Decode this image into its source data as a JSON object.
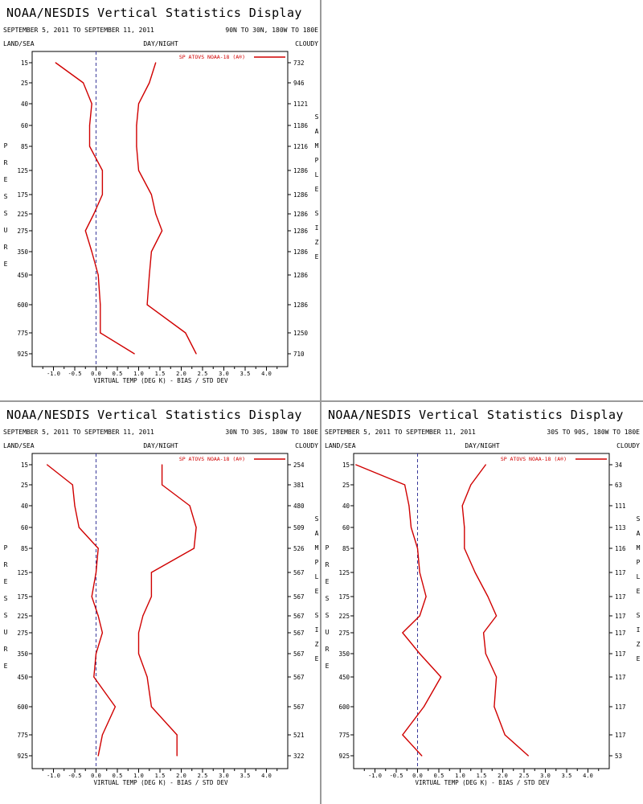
{
  "display_title": "NOAA/NESDIS Vertical Statistics Display",
  "x_axis_label": "VIRTUAL TEMP (DEG K) - BIAS / STD DEV",
  "header_labels": {
    "left": "LAND/SEA",
    "center": "DAY/NIGHT",
    "right": "CLOUDY"
  },
  "pressure_label": "PRESSURE",
  "sample_size_label": "SAMPLE SIZE",
  "legend_label": "SP ATOVS NOAA-18 (A®)",
  "colors": {
    "series": "#d00000",
    "zero_line": "#3a3a9a",
    "axis": "#000000",
    "divider": "#9a9a9a"
  },
  "chart_data": [
    {
      "type": "line",
      "date_range": "SEPTEMBER 5, 2011 TO SEPTEMBER 11, 2011",
      "region": "90N TO 30N, 180W TO 180E",
      "xlim": [
        -1.5,
        4.5
      ],
      "x_ticks": [
        "-1.0",
        "-0.5",
        "0.0",
        "0.5",
        "1.0",
        "1.5",
        "2.0",
        "2.5",
        "3.0",
        "3.5",
        "4.0"
      ],
      "pressure_levels": [
        "15",
        "25",
        "40",
        "60",
        "85",
        "125",
        "175",
        "225",
        "275",
        "350",
        "450",
        "600",
        "775",
        "925"
      ],
      "sample_size": [
        "732",
        "946",
        "1121",
        "1186",
        "1216",
        "1286",
        "1286",
        "1286",
        "1286",
        "1286",
        "1286",
        "1286",
        "1250",
        "710"
      ],
      "series": [
        {
          "name": "SP ATOVS NOAA-18 (A®)",
          "stat": "bias",
          "values": [
            -0.95,
            -0.3,
            -0.1,
            -0.15,
            -0.15,
            0.15,
            0.15,
            -0.05,
            -0.25,
            -0.1,
            0.05,
            0.1,
            0.1,
            0.9
          ]
        },
        {
          "name": "SP ATOVS NOAA-18 (A®)",
          "stat": "std_dev",
          "values": [
            1.4,
            1.25,
            1.0,
            0.95,
            0.95,
            1.0,
            1.3,
            1.4,
            1.55,
            1.3,
            1.25,
            1.2,
            2.1,
            2.35
          ]
        }
      ]
    },
    {
      "type": "line",
      "date_range": "SEPTEMBER 5, 2011 TO SEPTEMBER 11, 2011",
      "region": "30N TO 30S, 180W TO 180E",
      "xlim": [
        -1.5,
        4.5
      ],
      "x_ticks": [
        "-1.0",
        "-0.5",
        "0.0",
        "0.5",
        "1.0",
        "1.5",
        "2.0",
        "2.5",
        "3.0",
        "3.5",
        "4.0"
      ],
      "pressure_levels": [
        "15",
        "25",
        "40",
        "60",
        "85",
        "125",
        "175",
        "225",
        "275",
        "350",
        "450",
        "600",
        "775",
        "925"
      ],
      "sample_size": [
        "254",
        "381",
        "480",
        "509",
        "526",
        "567",
        "567",
        "567",
        "567",
        "567",
        "567",
        "567",
        "521",
        "322"
      ],
      "series": [
        {
          "name": "SP ATOVS NOAA-18 (A®)",
          "stat": "bias",
          "values": [
            -1.15,
            -0.55,
            -0.5,
            -0.4,
            0.05,
            0.0,
            -0.1,
            0.05,
            0.15,
            0.0,
            -0.05,
            0.45,
            0.15,
            0.05
          ]
        },
        {
          "name": "SP ATOVS NOAA-18 (A®)",
          "stat": "std_dev",
          "values": [
            1.55,
            1.55,
            2.2,
            2.35,
            2.3,
            1.3,
            1.3,
            1.1,
            1.0,
            1.0,
            1.2,
            1.3,
            1.9,
            1.9
          ]
        }
      ]
    },
    {
      "type": "line",
      "date_range": "SEPTEMBER 5, 2011 TO SEPTEMBER 11, 2011",
      "region": "30S TO 90S, 180W TO 180E",
      "xlim": [
        -1.5,
        4.5
      ],
      "x_ticks": [
        "-1.0",
        "-0.5",
        "0.0",
        "0.5",
        "1.0",
        "1.5",
        "2.0",
        "2.5",
        "3.0",
        "3.5",
        "4.0"
      ],
      "pressure_levels": [
        "15",
        "25",
        "40",
        "60",
        "85",
        "125",
        "175",
        "225",
        "275",
        "350",
        "450",
        "600",
        "775",
        "925"
      ],
      "sample_size": [
        "34",
        "63",
        "111",
        "113",
        "116",
        "117",
        "117",
        "117",
        "117",
        "117",
        "117",
        "117",
        "117",
        "53"
      ],
      "series": [
        {
          "name": "SP ATOVS NOAA-18 (A®)",
          "stat": "bias",
          "values": [
            -1.45,
            -0.3,
            -0.2,
            -0.15,
            0.0,
            0.05,
            0.2,
            0.05,
            -0.35,
            0.05,
            0.55,
            0.15,
            -0.35,
            0.1
          ]
        },
        {
          "name": "SP ATOVS NOAA-18 (A®)",
          "stat": "std_dev",
          "values": [
            1.6,
            1.25,
            1.05,
            1.1,
            1.1,
            1.35,
            1.65,
            1.85,
            1.55,
            1.6,
            1.85,
            1.8,
            2.05,
            2.6
          ]
        }
      ]
    }
  ]
}
